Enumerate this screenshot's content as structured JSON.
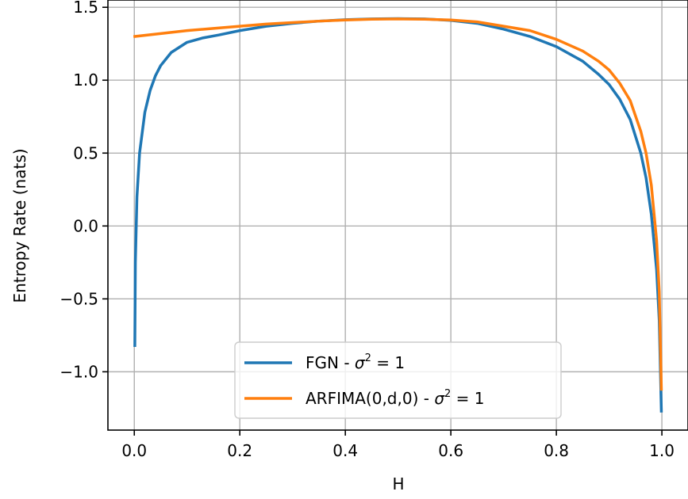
{
  "chart_data": {
    "type": "line",
    "title": "",
    "xlabel": "H",
    "ylabel": "Entropy Rate (nats)",
    "xlim": [
      -0.05,
      1.0
    ],
    "ylim": [
      -1.4,
      1.55
    ],
    "grid": true,
    "legend_position": "lower-center",
    "x_ticks": [
      0.0,
      0.2,
      0.4,
      0.6,
      0.8,
      1.0
    ],
    "x_tick_labels": [
      "0.0",
      "0.2",
      "0.4",
      "0.6",
      "0.8",
      "1.0"
    ],
    "y_ticks": [
      -1.0,
      -0.5,
      0.0,
      0.5,
      1.0,
      1.5
    ],
    "y_tick_labels": [
      "−1.0",
      "−0.5",
      "0.0",
      "0.5",
      "1.0",
      "1.5"
    ],
    "series": [
      {
        "name": "FGN - σ² = 1",
        "legend_prefix": "FGN - ",
        "color": "#1f77b4",
        "x": [
          0.001,
          0.002,
          0.005,
          0.01,
          0.02,
          0.03,
          0.04,
          0.05,
          0.07,
          0.1,
          0.13,
          0.16,
          0.2,
          0.25,
          0.3,
          0.35,
          0.4,
          0.45,
          0.5,
          0.55,
          0.6,
          0.65,
          0.7,
          0.75,
          0.8,
          0.85,
          0.88,
          0.9,
          0.92,
          0.94,
          0.96,
          0.97,
          0.98,
          0.99,
          0.995,
          0.999
        ],
        "y": [
          -0.82,
          -0.25,
          0.2,
          0.5,
          0.78,
          0.93,
          1.03,
          1.1,
          1.19,
          1.26,
          1.29,
          1.31,
          1.34,
          1.37,
          1.39,
          1.405,
          1.415,
          1.42,
          1.422,
          1.42,
          1.41,
          1.39,
          1.35,
          1.3,
          1.23,
          1.13,
          1.04,
          0.97,
          0.87,
          0.73,
          0.5,
          0.33,
          0.08,
          -0.3,
          -0.65,
          -1.27
        ]
      },
      {
        "name": "ARFIMA(0,d,0) - σ² = 1",
        "legend_prefix": "ARFIMA(0,d,0) - ",
        "color": "#ff7f0e",
        "x": [
          0.001,
          0.05,
          0.1,
          0.15,
          0.2,
          0.25,
          0.3,
          0.35,
          0.4,
          0.45,
          0.5,
          0.55,
          0.6,
          0.65,
          0.7,
          0.75,
          0.8,
          0.85,
          0.88,
          0.9,
          0.92,
          0.94,
          0.96,
          0.97,
          0.98,
          0.99,
          0.995,
          0.999
        ],
        "y": [
          1.3,
          1.32,
          1.34,
          1.355,
          1.37,
          1.385,
          1.395,
          1.405,
          1.413,
          1.418,
          1.42,
          1.418,
          1.413,
          1.4,
          1.37,
          1.34,
          1.28,
          1.2,
          1.13,
          1.07,
          0.98,
          0.86,
          0.65,
          0.5,
          0.28,
          -0.1,
          -0.45,
          -1.12
        ]
      }
    ]
  }
}
